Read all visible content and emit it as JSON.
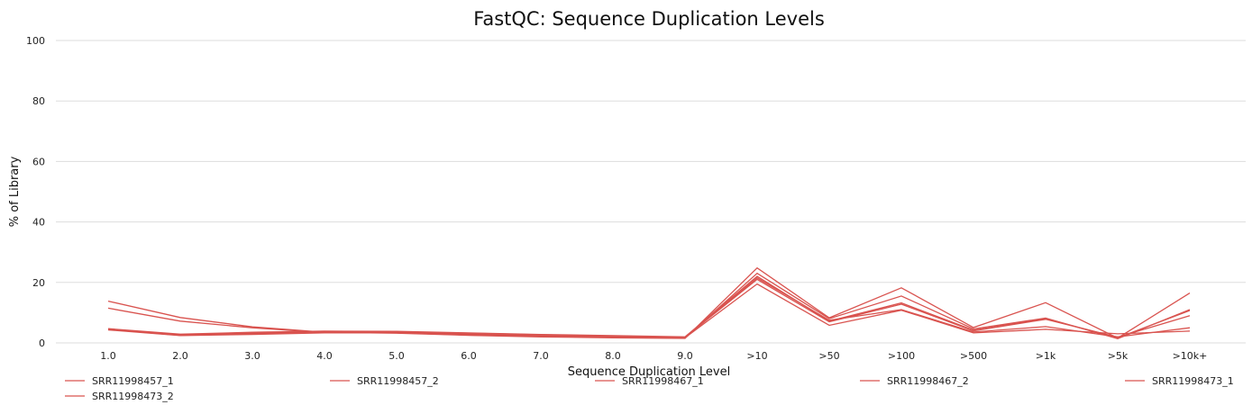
{
  "chart_data": {
    "type": "line",
    "title": "FastQC: Sequence Duplication Levels",
    "xlabel": "Sequence Duplication Level",
    "ylabel": "% of Library",
    "ylim": [
      0,
      100
    ],
    "yticks": [
      0,
      20,
      40,
      60,
      80,
      100
    ],
    "grid": true,
    "legend_position": "bottom",
    "categories": [
      "1.0",
      "2.0",
      "3.0",
      "4.0",
      "5.0",
      "6.0",
      "7.0",
      "8.0",
      "9.0",
      ">10",
      ">50",
      ">100",
      ">500",
      ">1k",
      ">5k",
      ">10k+"
    ],
    "series": [
      {
        "name": "SRR11998457_1",
        "color": "#d9534f",
        "values": [
          13.8,
          8.4,
          5.3,
          3.5,
          3.2,
          2.5,
          2.0,
          1.7,
          1.5,
          24.8,
          8.3,
          18.2,
          5.1,
          13.3,
          1.6,
          16.5
        ]
      },
      {
        "name": "SRR11998457_2",
        "color": "#d9534f",
        "values": [
          11.5,
          7.2,
          5.0,
          3.4,
          3.3,
          2.6,
          2.1,
          1.8,
          1.6,
          23.0,
          8.0,
          15.5,
          4.6,
          8.2,
          1.4,
          11.0
        ]
      },
      {
        "name": "SRR11998467_1",
        "color": "#d9534f",
        "values": [
          4.7,
          2.9,
          3.5,
          3.9,
          3.8,
          3.3,
          2.8,
          2.4,
          2.0,
          22.0,
          7.2,
          13.2,
          4.2,
          8.0,
          1.7,
          10.7
        ]
      },
      {
        "name": "SRR11998467_2",
        "color": "#d9534f",
        "values": [
          4.5,
          2.7,
          3.2,
          3.7,
          3.7,
          3.2,
          2.7,
          2.3,
          1.9,
          21.0,
          7.0,
          12.8,
          4.0,
          7.8,
          1.9,
          9.0
        ]
      },
      {
        "name": "SRR11998473_1",
        "color": "#d9534f",
        "values": [
          4.4,
          2.5,
          3.0,
          3.6,
          3.5,
          3.0,
          2.6,
          2.2,
          1.8,
          21.5,
          7.5,
          11.0,
          3.6,
          5.4,
          2.0,
          5.0
        ]
      },
      {
        "name": "SRR11998473_2",
        "color": "#d9534f",
        "values": [
          4.3,
          2.4,
          2.8,
          3.3,
          3.3,
          2.8,
          2.4,
          2.0,
          1.7,
          19.5,
          5.8,
          10.8,
          3.3,
          4.5,
          3.0,
          3.9
        ]
      }
    ]
  }
}
